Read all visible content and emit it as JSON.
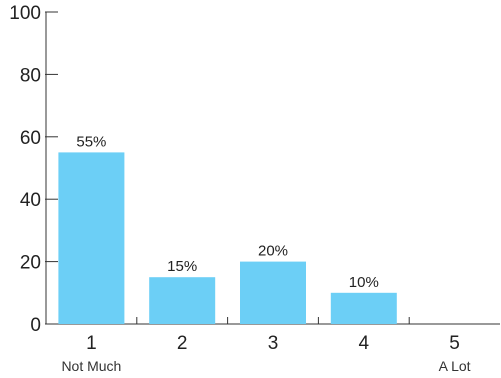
{
  "chart_data": {
    "type": "bar",
    "categories": [
      "1",
      "2",
      "3",
      "4",
      "5"
    ],
    "category_sublabels": [
      "Not Much",
      "",
      "",
      "",
      "A Lot"
    ],
    "values": [
      55,
      15,
      20,
      10,
      0
    ],
    "data_labels": [
      "55%",
      "15%",
      "20%",
      "10%",
      ""
    ],
    "title": "",
    "xlabel": "",
    "ylabel": "",
    "ylim": [
      0,
      100
    ],
    "yticks": [
      0,
      20,
      40,
      60,
      80,
      100
    ],
    "grid": false,
    "legend": "none",
    "colors": {
      "bar": "#6ccff6",
      "axis": "#333333"
    }
  }
}
